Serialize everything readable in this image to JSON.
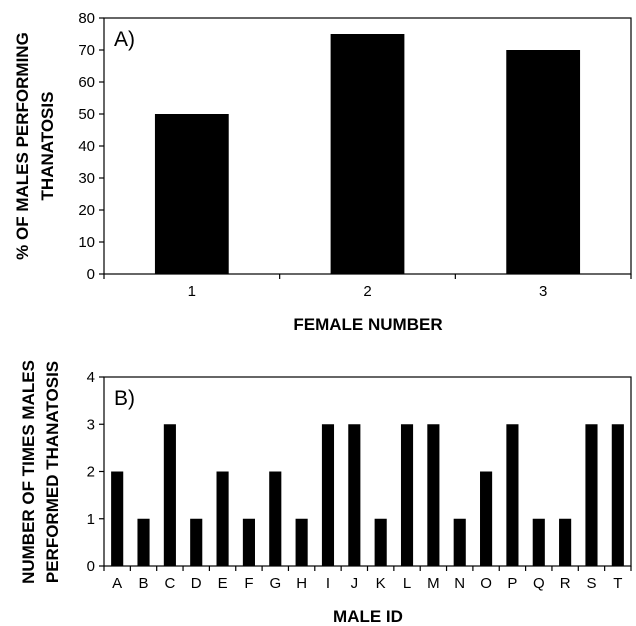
{
  "chart_data": [
    {
      "type": "bar",
      "panel_label": "A)",
      "categories": [
        "1",
        "2",
        "3"
      ],
      "values": [
        50,
        75,
        70
      ],
      "xlabel": "FEMALE NUMBER",
      "ylabel_lines": [
        "% OF MALES PERFORMING",
        "THANATOSIS"
      ],
      "ylim": [
        0,
        80
      ],
      "yticks": [
        0,
        10,
        20,
        30,
        40,
        50,
        60,
        70,
        80
      ],
      "bar_color": "#000000",
      "grid": false,
      "legend": "none"
    },
    {
      "type": "bar",
      "panel_label": "B)",
      "categories": [
        "A",
        "B",
        "C",
        "D",
        "E",
        "F",
        "G",
        "H",
        "I",
        "J",
        "K",
        "L",
        "M",
        "N",
        "O",
        "P",
        "Q",
        "R",
        "S",
        "T"
      ],
      "values": [
        2,
        1,
        3,
        1,
        2,
        1,
        2,
        1,
        3,
        3,
        1,
        3,
        3,
        1,
        2,
        3,
        1,
        1,
        3,
        3
      ],
      "xlabel": "MALE ID",
      "ylabel_lines": [
        "NUMBER OF TIMES MALES",
        "PERFORMED THANATOSIS"
      ],
      "ylim": [
        0,
        4
      ],
      "yticks": [
        0,
        1,
        2,
        3,
        4
      ],
      "bar_color": "#000000",
      "grid": false,
      "legend": "none"
    }
  ]
}
